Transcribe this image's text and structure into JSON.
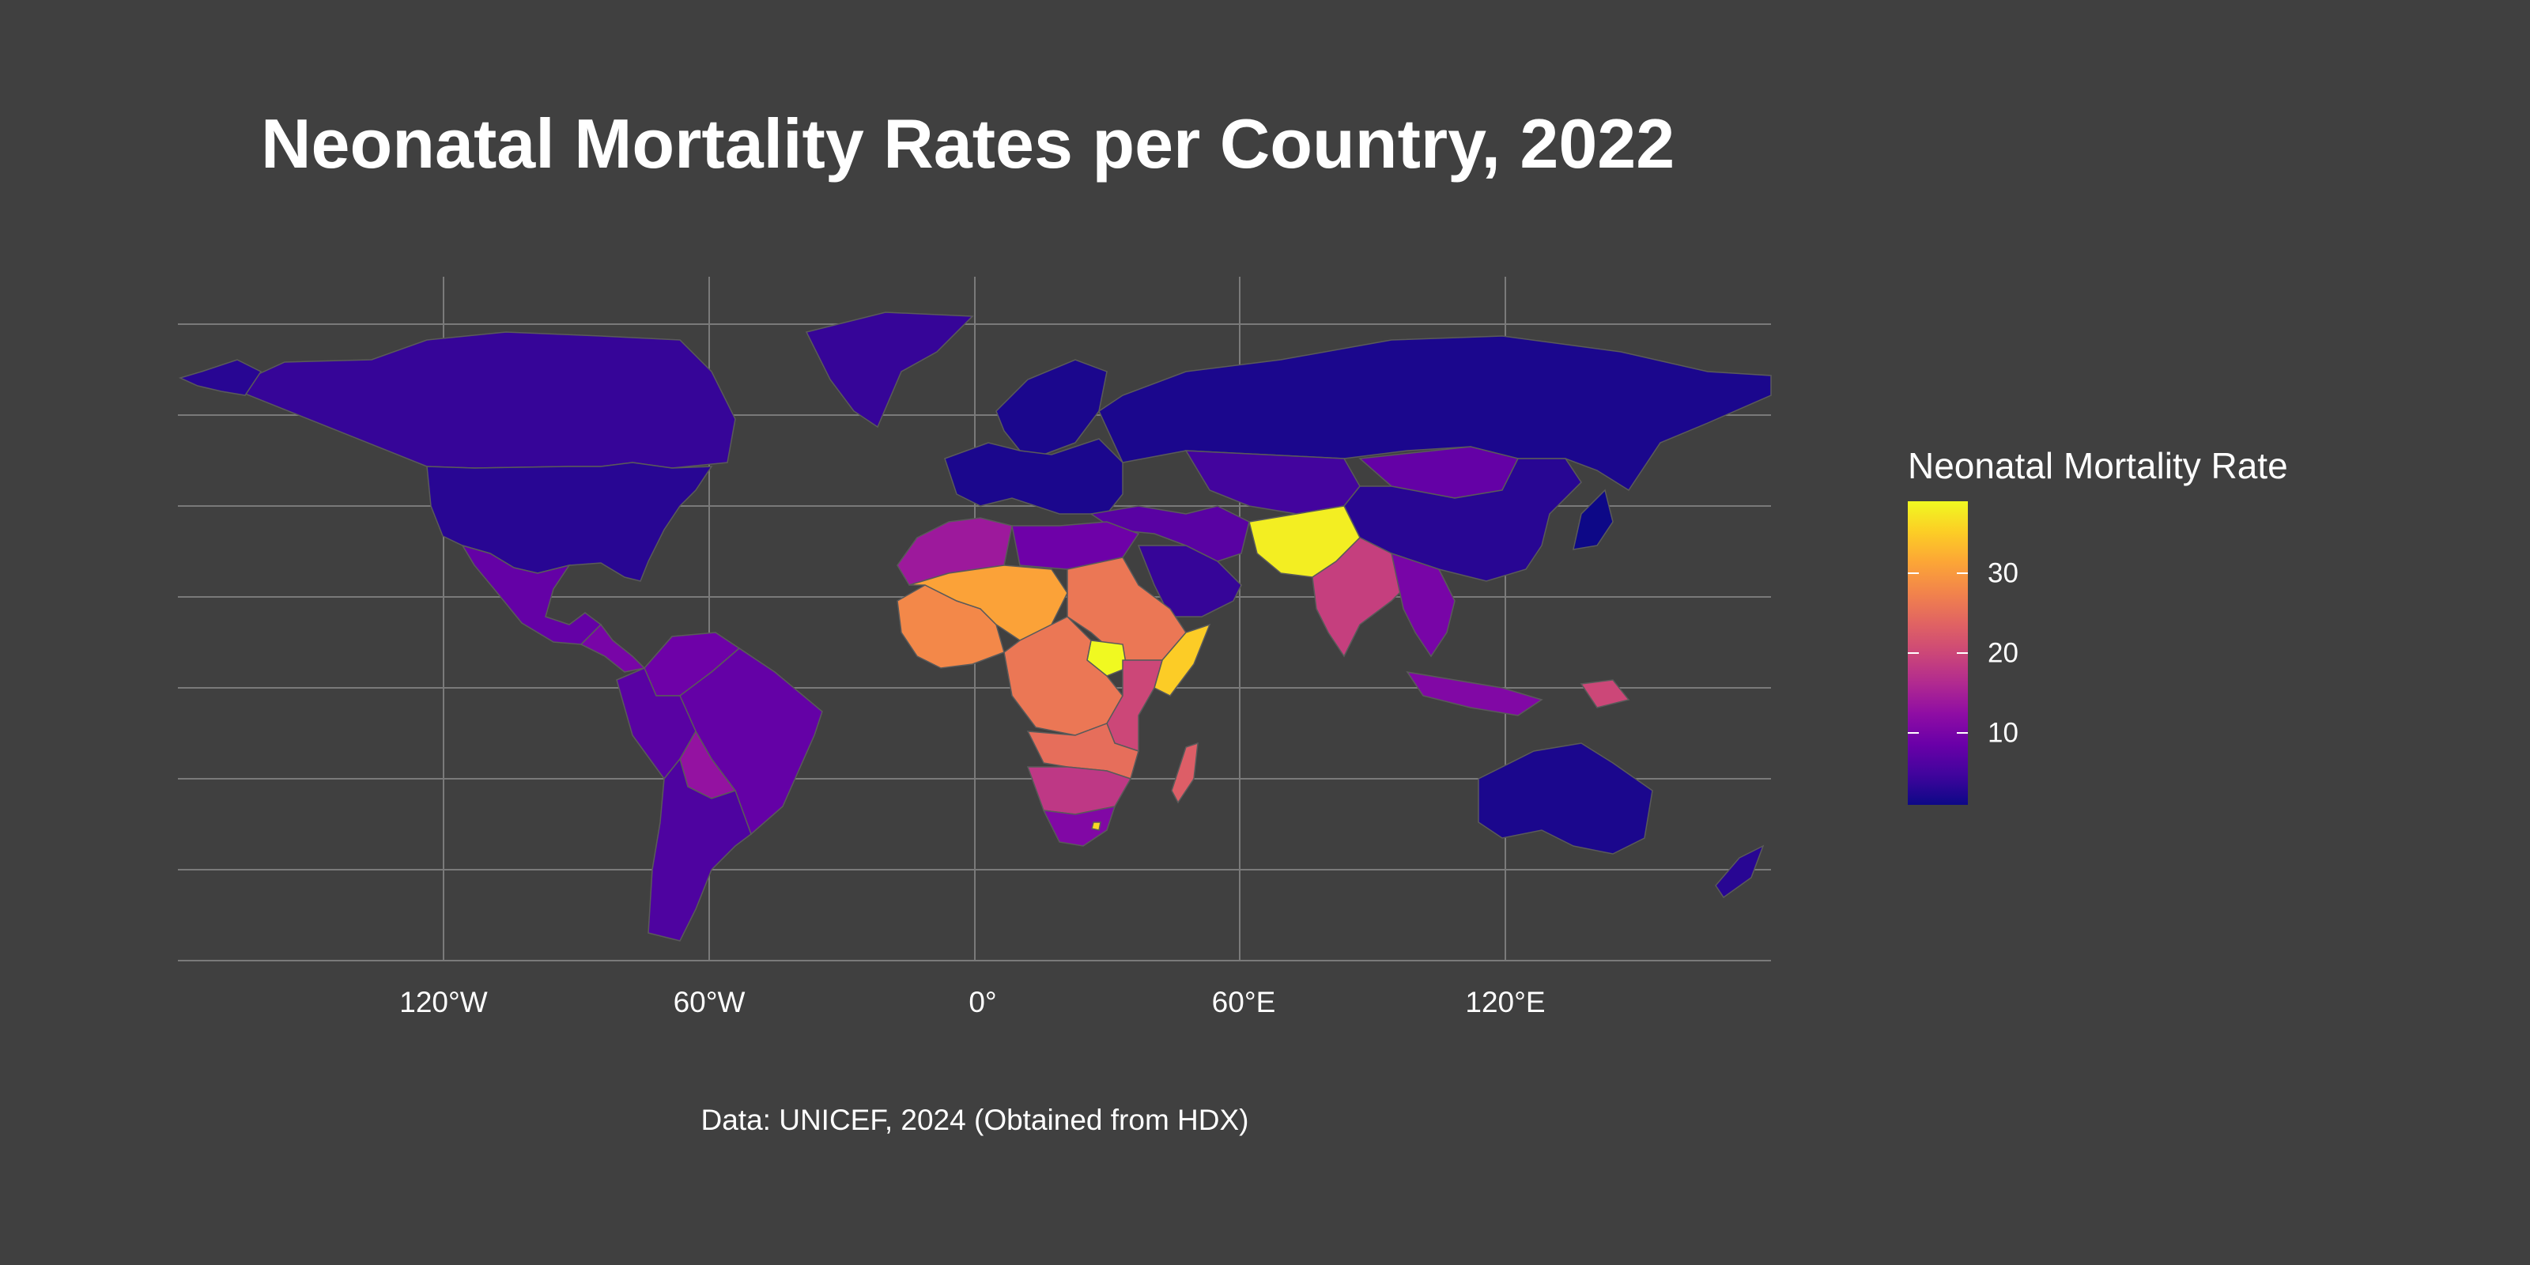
{
  "title": "Neonatal Mortality Rates per Country, 2022",
  "caption": "Data: UNICEF, 2024 (Obtained from HDX)",
  "colors": {
    "background": "#404040",
    "grid": "#7a7a7a",
    "country_border": "#5a5a5a",
    "palette": [
      "#0d0887",
      "#41049d",
      "#6a00a8",
      "#8f0da4",
      "#b12a90",
      "#cc4778",
      "#e16462",
      "#f2844b",
      "#fca636",
      "#fcce25",
      "#f0f921"
    ]
  },
  "axes": {
    "x_ticks": [
      "120°W",
      "60°W",
      "0°",
      "60°E",
      "120°E"
    ]
  },
  "legend": {
    "title": "Neonatal Mortality Rate",
    "ticks": [
      "10",
      "20",
      "30"
    ],
    "scale": "plasma",
    "min": 1,
    "max": 39
  },
  "chart_data": {
    "type": "choropleth",
    "projection": "equirectangular",
    "variable": "Neonatal Mortality Rate",
    "year": 2022,
    "regions": [
      {
        "name": "Canada",
        "value": 4
      },
      {
        "name": "United States",
        "value": 3
      },
      {
        "name": "Alaska",
        "value": 3
      },
      {
        "name": "Greenland",
        "value": 4
      },
      {
        "name": "Mexico",
        "value": 8
      },
      {
        "name": "Central America",
        "value": 10
      },
      {
        "name": "Colombia / Venezuela",
        "value": 9
      },
      {
        "name": "Brazil",
        "value": 8
      },
      {
        "name": "Peru / Ecuador",
        "value": 7
      },
      {
        "name": "Bolivia",
        "value": 13
      },
      {
        "name": "Argentina / Chile",
        "value": 6
      },
      {
        "name": "Europe",
        "value": 2
      },
      {
        "name": "Scandinavia",
        "value": 2
      },
      {
        "name": "Russia",
        "value": 2
      },
      {
        "name": "Kazakhstan",
        "value": 5
      },
      {
        "name": "Mongolia",
        "value": 8
      },
      {
        "name": "China",
        "value": 3
      },
      {
        "name": "Japan",
        "value": 1
      },
      {
        "name": "Turkey / Iran",
        "value": 7
      },
      {
        "name": "Saudi Arabia",
        "value": 4
      },
      {
        "name": "Afghanistan / Pakistan",
        "value": 38
      },
      {
        "name": "India",
        "value": 19
      },
      {
        "name": "Southeast Asia",
        "value": 10
      },
      {
        "name": "Indonesia",
        "value": 11
      },
      {
        "name": "Papua New Guinea",
        "value": 20
      },
      {
        "name": "Australia",
        "value": 2
      },
      {
        "name": "New Zealand",
        "value": 3
      },
      {
        "name": "Northwest Africa",
        "value": 14
      },
      {
        "name": "Libya / Egypt",
        "value": 9
      },
      {
        "name": "Mali / Niger / Chad",
        "value": 31
      },
      {
        "name": "West Africa",
        "value": 28
      },
      {
        "name": "Sudan / Ethiopia",
        "value": 26
      },
      {
        "name": "South Sudan",
        "value": 39
      },
      {
        "name": "Somalia",
        "value": 35
      },
      {
        "name": "Central Africa",
        "value": 26
      },
      {
        "name": "East Africa",
        "value": 20
      },
      {
        "name": "Angola / Zambia",
        "value": 25
      },
      {
        "name": "Namibia / Botswana",
        "value": 18
      },
      {
        "name": "South Africa",
        "value": 11
      },
      {
        "name": "Lesotho",
        "value": 36
      },
      {
        "name": "Madagascar",
        "value": 23
      }
    ]
  }
}
